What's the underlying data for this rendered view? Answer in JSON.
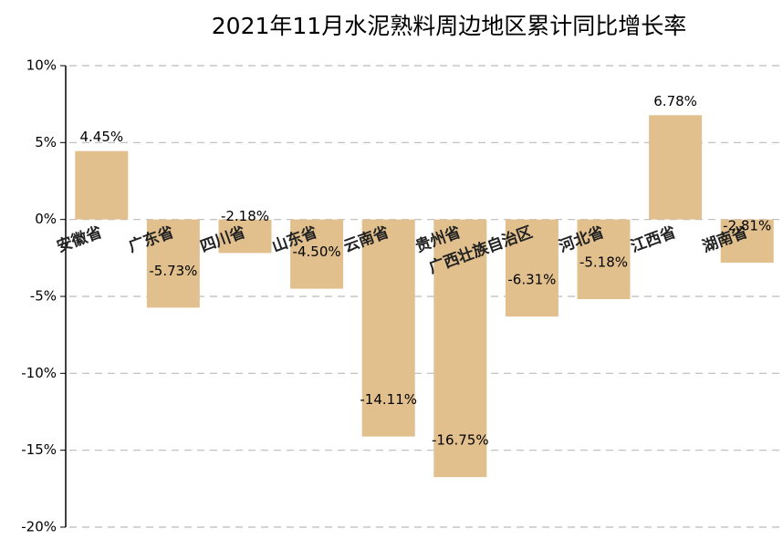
{
  "chart_data": {
    "type": "bar",
    "title": "2021年11月水泥熟料周边地区累计同比增长率",
    "categories": [
      "安徽省",
      "广东省",
      "四川省",
      "山东省",
      "云南省",
      "贵州省",
      "广西壮族自治区",
      "河北省",
      "江西省",
      "湖南省"
    ],
    "values": [
      4.45,
      -5.73,
      -2.18,
      -4.5,
      -14.11,
      -16.75,
      -6.31,
      -5.18,
      6.78,
      -2.81
    ],
    "value_labels": [
      "4.45%",
      "-5.73%",
      "-2.18%",
      "-4.50%",
      "-14.11%",
      "-16.75%",
      "-6.31%",
      "-5.18%",
      "6.78%",
      "-2.81%"
    ],
    "color": "#e2c08e",
    "ylim": [
      -20,
      10
    ],
    "yticks": [
      {
        "value": -20,
        "label": "-20%"
      },
      {
        "value": -15,
        "label": "-15%"
      },
      {
        "value": -10,
        "label": "-10%"
      },
      {
        "value": -5,
        "label": "-5%"
      },
      {
        "value": 0,
        "label": "0%"
      },
      {
        "value": 5,
        "label": "5%"
      },
      {
        "value": 10,
        "label": "10%"
      }
    ],
    "grid": true
  }
}
